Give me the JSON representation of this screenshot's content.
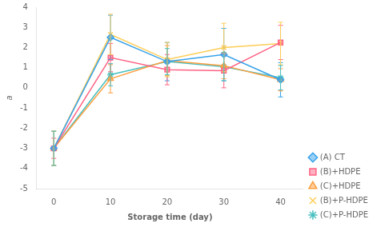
{
  "chart_data": {
    "type": "line",
    "x": [
      0,
      10,
      20,
      30,
      40
    ],
    "series": [
      {
        "name": "(A) CT",
        "values": [
          -3.0,
          2.5,
          1.3,
          1.65,
          0.4
        ],
        "yerr": [
          0.85,
          1.1,
          0.95,
          1.3,
          0.85
        ],
        "marker": "diamond",
        "line_style": "solid"
      },
      {
        "name": "(B)+HDPE",
        "values": [
          -3.0,
          1.5,
          0.9,
          0.85,
          2.25
        ],
        "yerr": [
          0.5,
          0.7,
          0.75,
          0.85,
          0.85
        ],
        "marker": "square",
        "line_style": "solid"
      },
      {
        "name": "(C)+HDPE",
        "values": [
          -3.0,
          0.45,
          1.35,
          1.1,
          0.4
        ],
        "yerr": [
          0.85,
          0.7,
          0.75,
          0.65,
          0.55
        ],
        "marker": "triangle",
        "line_style": "solid"
      },
      {
        "name": "(B)+P-HDPE",
        "values": [
          -3.0,
          2.65,
          1.4,
          2.0,
          2.2
        ],
        "yerr": [
          0.85,
          1.0,
          0.85,
          1.2,
          1.05
        ],
        "marker": "cross",
        "line_style": "solid"
      },
      {
        "name": "(C)+P-HDPE",
        "values": [
          -3.0,
          0.65,
          1.3,
          1.05,
          0.5
        ],
        "yerr": [
          0.85,
          0.55,
          0.65,
          0.7,
          0.6
        ],
        "marker": "star",
        "line_style": "solid"
      }
    ],
    "xlabel": "Storage time (day)",
    "ylabel": "a",
    "xlim": [
      -3,
      44
    ],
    "xticks": [
      0,
      10,
      20,
      30,
      40
    ],
    "ylim": [
      -5,
      4
    ],
    "yticks": [
      -5,
      -4,
      -3,
      -2,
      -1,
      0,
      1,
      2,
      3,
      4
    ],
    "grid": false,
    "legend": "lower right"
  }
}
